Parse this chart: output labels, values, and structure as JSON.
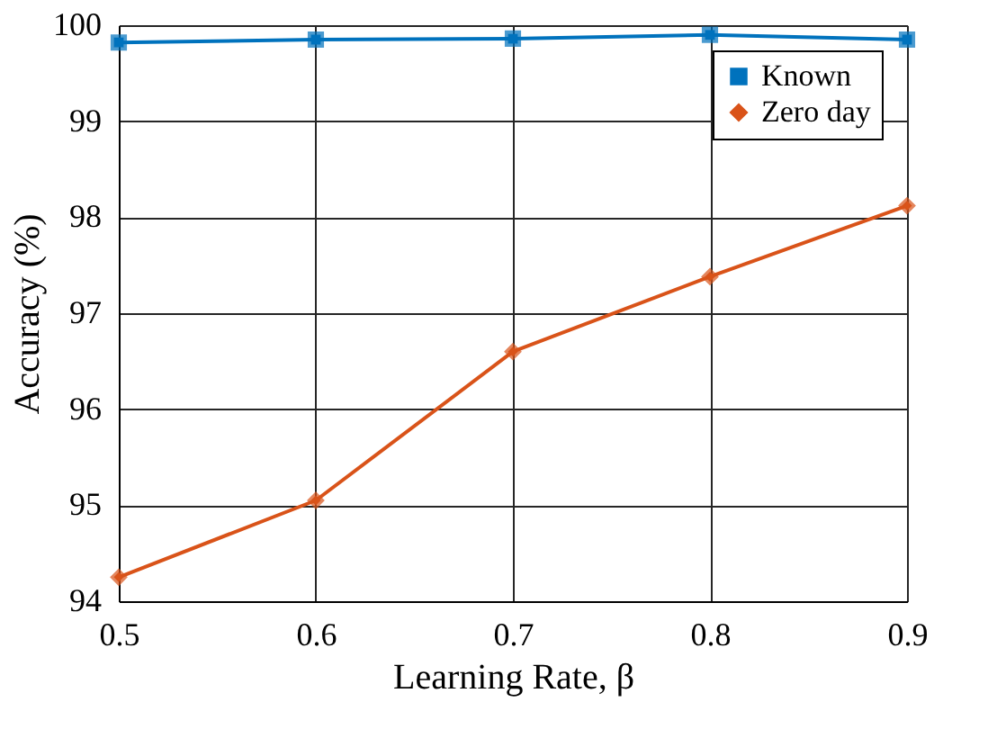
{
  "chart_data": {
    "type": "line",
    "xlabel": "Learning Rate, β",
    "ylabel": "Accuracy (%)",
    "x": [
      0.5,
      0.6,
      0.7,
      0.8,
      0.9
    ],
    "series": [
      {
        "name": "Known",
        "color": "#0072bd",
        "marker": "square",
        "values": [
          99.82,
          99.85,
          99.86,
          99.9,
          99.85
        ]
      },
      {
        "name": "Zero day",
        "color": "#d95319",
        "marker": "diamond",
        "values": [
          94.25,
          95.05,
          96.6,
          97.38,
          98.12
        ]
      }
    ],
    "xlim": [
      0.5,
      0.9
    ],
    "xticks": [
      0.5,
      0.6,
      0.7,
      0.8,
      0.9
    ],
    "ylim": [
      94,
      100
    ],
    "yticks": [
      94,
      95,
      96,
      97,
      98,
      99,
      100
    ],
    "grid": true,
    "legend": "top right",
    "line_style": "solid"
  }
}
